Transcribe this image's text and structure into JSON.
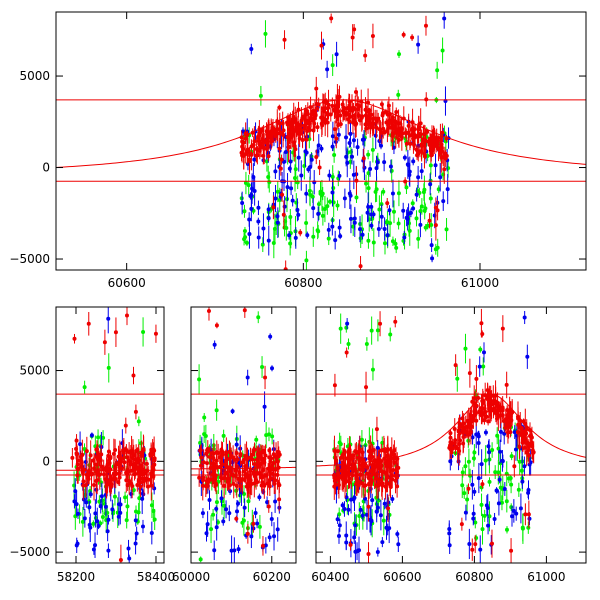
{
  "chart_data": [
    {
      "id": "top",
      "type": "scatter",
      "title": "",
      "xlabel": "",
      "ylabel": "",
      "xlim": [
        60520,
        61120
      ],
      "ylim": [
        -5600,
        8500
      ],
      "x_ticks": [
        60600,
        60800,
        61000
      ],
      "x_tick_labels": [
        "60600",
        "60800",
        "61000"
      ],
      "y_ticks": [
        -5000,
        0,
        5000
      ],
      "y_tick_labels": [
        "−5000",
        "0",
        "5000"
      ],
      "hlines": [
        3700,
        -750
      ],
      "model_curve": {
        "center": 60845,
        "scale": 120,
        "peak": 3700,
        "baseline": -500
      },
      "series": [
        {
          "name": "green",
          "color": "#00ee00",
          "count": 160,
          "segments": [
            {
              "x": [
                60730,
                60965
              ],
              "ymin": -4500,
              "ymax": 2000,
              "spike_fraction": 0.12
            }
          ]
        },
        {
          "name": "blue",
          "color": "#0000ee",
          "count": 170,
          "segments": [
            {
              "x": [
                60730,
                60965
              ],
              "ymin": -4000,
              "ymax": 2000,
              "spike_fraction": 0.12
            }
          ]
        },
        {
          "name": "red",
          "color": "#ee0000",
          "count": 420,
          "segments": [
            {
              "x": [
                60730,
                60965
              ],
              "around_curve": true,
              "spread": 1200,
              "spike_fraction": 0.06
            }
          ]
        }
      ]
    },
    {
      "id": "bottom",
      "type": "scatter",
      "title": "",
      "xlabel": "",
      "ylabel": "",
      "panels": [
        {
          "xlim": [
            58150,
            58420
          ],
          "x_ticks": [
            58200,
            58400
          ],
          "x_tick_labels": [
            "58200",
            "58400"
          ]
        },
        {
          "xlim": [
            60000,
            60260
          ],
          "x_ticks": [
            60000,
            60200
          ],
          "x_tick_labels": [
            "60000",
            "60200"
          ]
        },
        {
          "xlim": [
            60360,
            61110
          ],
          "x_ticks": [
            60400,
            60600,
            60800,
            61000
          ],
          "x_tick_labels": [
            "60400",
            "60600",
            "60800",
            "61000"
          ]
        }
      ],
      "ylim": [
        -5600,
        8500
      ],
      "y_ticks": [
        -5000,
        0,
        5000
      ],
      "y_tick_labels": [
        "−5000",
        "0",
        "5000"
      ],
      "hlines": [
        3700,
        -750
      ],
      "model_curve": {
        "center": 60845,
        "scale": 120,
        "peak": 3700,
        "baseline": -500
      },
      "series": [
        {
          "name": "green",
          "color": "#00ee00",
          "count": 240,
          "segments": [
            {
              "x": [
                58190,
                58400
              ],
              "ymin": -3500,
              "ymax": 1500,
              "spike_fraction": 0.15
            },
            {
              "x": [
                60020,
                60220
              ],
              "ymin": -3500,
              "ymax": 1500,
              "spike_fraction": 0.15
            },
            {
              "x": [
                60410,
                60590
              ],
              "ymin": -3500,
              "ymax": 1500,
              "spike_fraction": 0.15
            },
            {
              "x": [
                60730,
                60965
              ],
              "ymin": -4500,
              "ymax": 2000,
              "spike_fraction": 0.12
            }
          ]
        },
        {
          "name": "blue",
          "color": "#0000ee",
          "count": 260,
          "segments": [
            {
              "x": [
                58190,
                58400
              ],
              "ymin": -5000,
              "ymax": 1000,
              "spike_fraction": 0.1
            },
            {
              "x": [
                60020,
                60220
              ],
              "ymin": -5000,
              "ymax": 1000,
              "spike_fraction": 0.1
            },
            {
              "x": [
                60410,
                60590
              ],
              "ymin": -5000,
              "ymax": 1000,
              "spike_fraction": 0.1
            },
            {
              "x": [
                60730,
                60965
              ],
              "ymin": -4000,
              "ymax": 2000,
              "spike_fraction": 0.12
            }
          ]
        },
        {
          "name": "red",
          "color": "#ee0000",
          "count": 800,
          "segments": [
            {
              "x": [
                58190,
                58400
              ],
              "ymin": -1400,
              "ymax": 700,
              "spike_fraction": 0.06
            },
            {
              "x": [
                60020,
                60220
              ],
              "ymin": -1400,
              "ymax": 700,
              "spike_fraction": 0.06
            },
            {
              "x": [
                60410,
                60590
              ],
              "ymin": -1400,
              "ymax": 700,
              "spike_fraction": 0.06
            },
            {
              "x": [
                60730,
                60965
              ],
              "around_curve": true,
              "spread": 1200,
              "spike_fraction": 0.06
            }
          ]
        }
      ]
    }
  ],
  "colors": {
    "line": "#ee0000",
    "frame": "#000000",
    "background": "#ffffff"
  }
}
